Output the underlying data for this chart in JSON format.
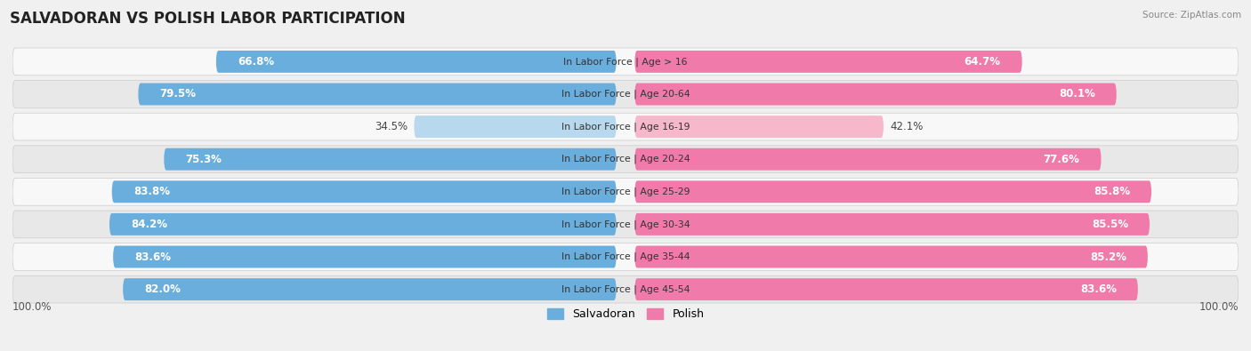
{
  "title": "SALVADORAN VS POLISH LABOR PARTICIPATION",
  "source": "Source: ZipAtlas.com",
  "categories": [
    "In Labor Force | Age > 16",
    "In Labor Force | Age 20-64",
    "In Labor Force | Age 16-19",
    "In Labor Force | Age 20-24",
    "In Labor Force | Age 25-29",
    "In Labor Force | Age 30-34",
    "In Labor Force | Age 35-44",
    "In Labor Force | Age 45-54"
  ],
  "salvadoran_values": [
    66.8,
    79.5,
    34.5,
    75.3,
    83.8,
    84.2,
    83.6,
    82.0
  ],
  "polish_values": [
    64.7,
    80.1,
    42.1,
    77.6,
    85.8,
    85.5,
    85.2,
    83.6
  ],
  "salvadoran_color": "#6aaede",
  "salvadoran_color_light": "#b8d8ee",
  "polish_color": "#f07aaa",
  "polish_color_light": "#f8b8cc",
  "bar_height": 0.68,
  "max_val": 100.0,
  "bg_color": "#f0f0f0",
  "row_bg_light": "#f8f8f8",
  "row_bg_dark": "#e8e8e8",
  "label_fontsize": 8.5,
  "cat_fontsize": 7.8,
  "title_fontsize": 12,
  "legend_fontsize": 9,
  "axis_label": "100.0%",
  "threshold": 50
}
